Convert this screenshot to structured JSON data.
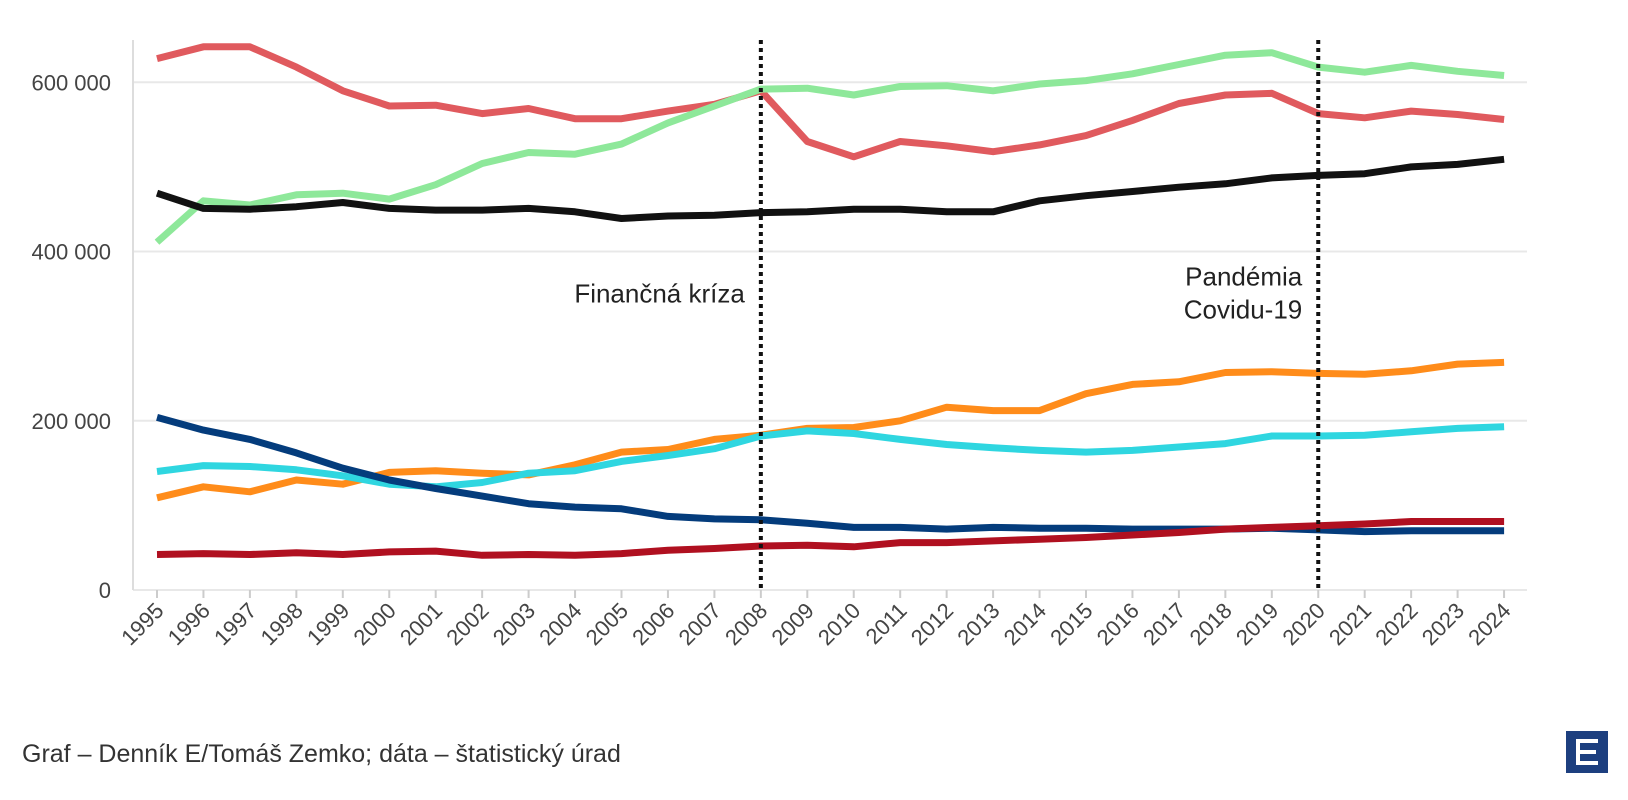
{
  "chart_data": {
    "type": "line",
    "title": "",
    "xlabel": "",
    "ylabel": "",
    "ylim": [
      0,
      650000
    ],
    "yticks": [
      0,
      200000,
      400000,
      600000
    ],
    "ytick_labels": [
      "0",
      "200 000",
      "400 000",
      "600 000"
    ],
    "x": [
      "1995",
      "1996",
      "1997",
      "1998",
      "1999",
      "2000",
      "2001",
      "2002",
      "2003",
      "2004",
      "2005",
      "2006",
      "2007",
      "2008",
      "2009",
      "2010",
      "2011",
      "2012",
      "2013",
      "2014",
      "2015",
      "2016",
      "2017",
      "2018",
      "2019",
      "2020",
      "2021",
      "2022",
      "2023",
      "2024"
    ],
    "grid": true,
    "legend": "none",
    "series": [
      {
        "name": "series-red",
        "color": "#e05a5e",
        "values": [
          628000,
          642000,
          642000,
          618000,
          590000,
          572000,
          573000,
          563000,
          569000,
          557000,
          557000,
          566000,
          574000,
          590000,
          530000,
          512000,
          530000,
          525000,
          518000,
          526000,
          537000,
          555000,
          575000,
          585000,
          587000,
          563000,
          558000,
          566000,
          562000,
          556000
        ]
      },
      {
        "name": "series-green",
        "color": "#8ee89a",
        "values": [
          411000,
          460000,
          455000,
          467000,
          469000,
          462000,
          479000,
          504000,
          517000,
          515000,
          527000,
          552000,
          572000,
          592000,
          593000,
          585000,
          595000,
          596000,
          590000,
          598000,
          602000,
          610000,
          621000,
          632000,
          635000,
          618000,
          612000,
          620000,
          613000,
          608000
        ]
      },
      {
        "name": "series-black",
        "color": "#111111",
        "values": [
          469000,
          451000,
          450000,
          453000,
          458000,
          451000,
          449000,
          449000,
          451000,
          447000,
          439000,
          442000,
          443000,
          446000,
          447000,
          450000,
          450000,
          447000,
          447000,
          460000,
          466000,
          471000,
          476000,
          480000,
          487000,
          490000,
          492000,
          500000,
          503000,
          509000
        ]
      },
      {
        "name": "series-orange",
        "color": "#ff8c1a",
        "values": [
          109000,
          122000,
          116000,
          130000,
          125000,
          139000,
          141000,
          138000,
          136000,
          148000,
          163000,
          166000,
          178000,
          183000,
          191000,
          192000,
          200000,
          216000,
          212000,
          212000,
          232000,
          243000,
          246000,
          257000,
          258000,
          256000,
          255000,
          259000,
          267000,
          269000
        ]
      },
      {
        "name": "series-cyan",
        "color": "#2fd6e0",
        "values": [
          140000,
          147000,
          146000,
          142000,
          135000,
          125000,
          122000,
          127000,
          138000,
          141000,
          152000,
          159000,
          167000,
          182000,
          188000,
          185000,
          178000,
          172000,
          168000,
          165000,
          163000,
          165000,
          169000,
          173000,
          182000,
          182000,
          183000,
          187000,
          191000,
          193000
        ]
      },
      {
        "name": "series-navy",
        "color": "#043c7c",
        "values": [
          204000,
          189000,
          178000,
          162000,
          144000,
          130000,
          120000,
          111000,
          102000,
          98000,
          96000,
          87000,
          84000,
          83000,
          79000,
          74000,
          74000,
          72000,
          74000,
          73000,
          73000,
          72000,
          72000,
          72000,
          73000,
          71000,
          69000,
          70000,
          70000,
          70000
        ]
      },
      {
        "name": "series-darkred",
        "color": "#b01020",
        "values": [
          42000,
          43000,
          42000,
          44000,
          42000,
          45000,
          46000,
          41000,
          42000,
          41000,
          43000,
          47000,
          49000,
          52000,
          53000,
          51000,
          56000,
          56000,
          58000,
          60000,
          62000,
          65000,
          68000,
          72000,
          74000,
          76000,
          78000,
          81000,
          81000,
          81000
        ]
      }
    ],
    "annotations": [
      {
        "x": "2008",
        "style": "dotted-vertical",
        "label_lines": [
          "Finančná kríza"
        ],
        "label_y": 340000
      },
      {
        "x": "2020",
        "style": "dotted-vertical",
        "label_lines": [
          "Pandémia",
          "Covidu-19"
        ],
        "label_y": 360000
      }
    ]
  },
  "source_text": "Graf – Denník E/Tomáš Zemko; dáta – štatistický úrad",
  "logo_letter": "E",
  "colors": {
    "grid": "#e8e8e8",
    "axis": "#dddddd",
    "logo_bg": "#1d3f7f"
  }
}
